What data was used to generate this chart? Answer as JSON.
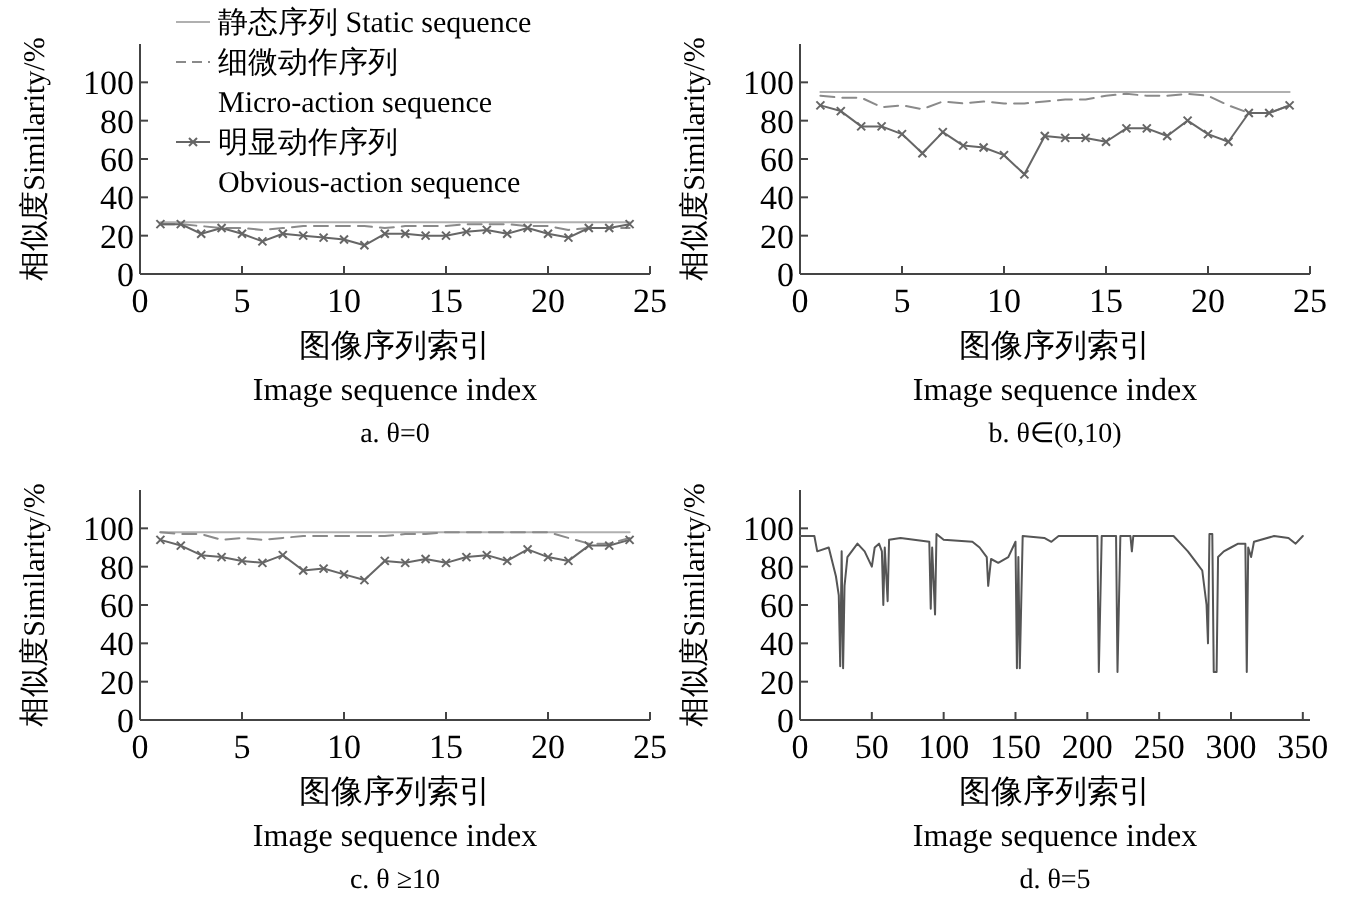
{
  "chart_data": [
    {
      "type": "line",
      "title": "a. θ=0",
      "xlabel": "图像序列索引\nImage sequence index",
      "ylabel": "相似度Similarity/%",
      "xlim": [
        0,
        25
      ],
      "xticks": [
        0,
        5,
        10,
        15,
        20,
        25
      ],
      "ylim": [
        0,
        120
      ],
      "yticks": [
        0,
        20,
        40,
        60,
        80,
        100
      ],
      "legend": "top left",
      "x": [
        1,
        2,
        3,
        4,
        5,
        6,
        7,
        8,
        9,
        10,
        11,
        12,
        13,
        14,
        15,
        16,
        17,
        18,
        19,
        20,
        21,
        22,
        23,
        24
      ],
      "series": [
        {
          "name": "静态序列 Static sequence",
          "color": "#b0b0b0",
          "line_style": "solid",
          "values": [
            27,
            27,
            27,
            27,
            27,
            27,
            27,
            27,
            27,
            27,
            27,
            27,
            27,
            27,
            27,
            27,
            27,
            27,
            27,
            27,
            27,
            27,
            27,
            27
          ]
        },
        {
          "name": "细微动作序列\nMicro-action sequence",
          "color": "#8a8a8a",
          "line_style": "dashed",
          "values": [
            26,
            26,
            25,
            24,
            24,
            23,
            24,
            25,
            25,
            25,
            25,
            24,
            25,
            25,
            25,
            26,
            26,
            26,
            25,
            25,
            23,
            24,
            24,
            24
          ]
        },
        {
          "name": "明显动作序列\nObvious-action sequence",
          "color": "#666666",
          "line_style": "solid",
          "marker": "cross",
          "values": [
            26,
            26,
            21,
            24,
            21,
            17,
            21,
            20,
            19,
            18,
            15,
            21,
            21,
            20,
            20,
            22,
            23,
            21,
            24,
            21,
            19,
            24,
            24,
            26
          ]
        }
      ]
    },
    {
      "type": "line",
      "title": "b. θ∈(0,10)",
      "xlabel": "图像序列索引\nImage sequence index",
      "ylabel": "相似度Similarity/%",
      "xlim": [
        0,
        25
      ],
      "xticks": [
        0,
        5,
        10,
        15,
        20,
        25
      ],
      "ylim": [
        0,
        120
      ],
      "yticks": [
        0,
        20,
        40,
        60,
        80,
        100
      ],
      "x": [
        1,
        2,
        3,
        4,
        5,
        6,
        7,
        8,
        9,
        10,
        11,
        12,
        13,
        14,
        15,
        16,
        17,
        18,
        19,
        20,
        21,
        22,
        23,
        24
      ],
      "series": [
        {
          "color": "#b0b0b0",
          "line_style": "solid",
          "values": [
            95,
            95,
            95,
            95,
            95,
            95,
            95,
            95,
            95,
            95,
            95,
            95,
            95,
            95,
            95,
            95,
            95,
            95,
            95,
            95,
            95,
            95,
            95,
            95
          ]
        },
        {
          "color": "#8a8a8a",
          "line_style": "dashed",
          "values": [
            93,
            92,
            92,
            87,
            88,
            86,
            90,
            89,
            90,
            89,
            89,
            90,
            91,
            91,
            93,
            94,
            93,
            93,
            94,
            93,
            88,
            84,
            84,
            88
          ]
        },
        {
          "color": "#666666",
          "line_style": "solid",
          "marker": "cross",
          "values": [
            88,
            85,
            77,
            77,
            73,
            63,
            74,
            67,
            66,
            62,
            52,
            72,
            71,
            71,
            69,
            76,
            76,
            72,
            80,
            73,
            69,
            84,
            84,
            88
          ]
        }
      ]
    },
    {
      "type": "line",
      "title": "c. θ ≥10",
      "xlabel": "图像序列索引\nImage sequence index",
      "ylabel": "相似度Similarity/%",
      "xlim": [
        0,
        25
      ],
      "xticks": [
        0,
        5,
        10,
        15,
        20,
        25
      ],
      "ylim": [
        0,
        120
      ],
      "yticks": [
        0,
        20,
        40,
        60,
        80,
        100
      ],
      "x": [
        1,
        2,
        3,
        4,
        5,
        6,
        7,
        8,
        9,
        10,
        11,
        12,
        13,
        14,
        15,
        16,
        17,
        18,
        19,
        20,
        21,
        22,
        23,
        24
      ],
      "series": [
        {
          "color": "#b0b0b0",
          "line_style": "solid",
          "values": [
            98,
            98,
            98,
            98,
            98,
            98,
            98,
            98,
            98,
            98,
            98,
            98,
            98,
            98,
            98,
            98,
            98,
            98,
            98,
            98,
            98,
            98,
            98,
            98
          ]
        },
        {
          "color": "#8a8a8a",
          "line_style": "dashed",
          "values": [
            98,
            97,
            97,
            94,
            95,
            94,
            95,
            96,
            96,
            96,
            96,
            96,
            97,
            97,
            98,
            98,
            98,
            98,
            98,
            98,
            95,
            92,
            92,
            95
          ]
        },
        {
          "color": "#666666",
          "line_style": "solid",
          "marker": "cross",
          "values": [
            94,
            91,
            86,
            85,
            83,
            82,
            86,
            78,
            79,
            76,
            73,
            83,
            82,
            84,
            82,
            85,
            86,
            83,
            89,
            85,
            83,
            91,
            91,
            94
          ]
        }
      ]
    },
    {
      "type": "line",
      "title": "d. θ=5",
      "xlabel": "图像序列索引\nImage sequence index",
      "ylabel": "相似度Similarity/%",
      "xlim": [
        0,
        355
      ],
      "xticks": [
        0,
        50,
        100,
        150,
        200,
        250,
        300,
        350
      ],
      "ylim": [
        0,
        120
      ],
      "yticks": [
        0,
        20,
        40,
        60,
        80,
        100
      ],
      "series": [
        {
          "color": "#555555",
          "line_style": "solid",
          "x": [
            0,
            10,
            12,
            20,
            25,
            27,
            28,
            29,
            30,
            31,
            33,
            40,
            45,
            50,
            52,
            55,
            57,
            58,
            59,
            61,
            62,
            70,
            90,
            91,
            92,
            94,
            95,
            100,
            120,
            125,
            130,
            131,
            133,
            138,
            145,
            150,
            151,
            152,
            153,
            155,
            170,
            175,
            180,
            200,
            207,
            208,
            210,
            220,
            221,
            223,
            230,
            231,
            232,
            260,
            265,
            270,
            275,
            280,
            283,
            284,
            285,
            287,
            288,
            290,
            291,
            295,
            300,
            305,
            310,
            311,
            312,
            314,
            316,
            330,
            340,
            345,
            350
          ],
          "values": [
            96,
            96,
            88,
            90,
            75,
            65,
            28,
            88,
            27,
            70,
            85,
            92,
            88,
            80,
            90,
            92,
            88,
            60,
            90,
            62,
            94,
            95,
            93,
            58,
            90,
            55,
            97,
            94,
            93,
            90,
            85,
            70,
            84,
            82,
            85,
            93,
            27,
            85,
            27,
            96,
            95,
            93,
            96,
            96,
            96,
            25,
            96,
            96,
            25,
            96,
            96,
            88,
            96,
            96,
            92,
            88,
            83,
            78,
            60,
            40,
            97,
            97,
            25,
            25,
            85,
            88,
            90,
            92,
            92,
            25,
            90,
            85,
            93,
            96,
            95,
            92,
            96
          ]
        }
      ]
    }
  ]
}
